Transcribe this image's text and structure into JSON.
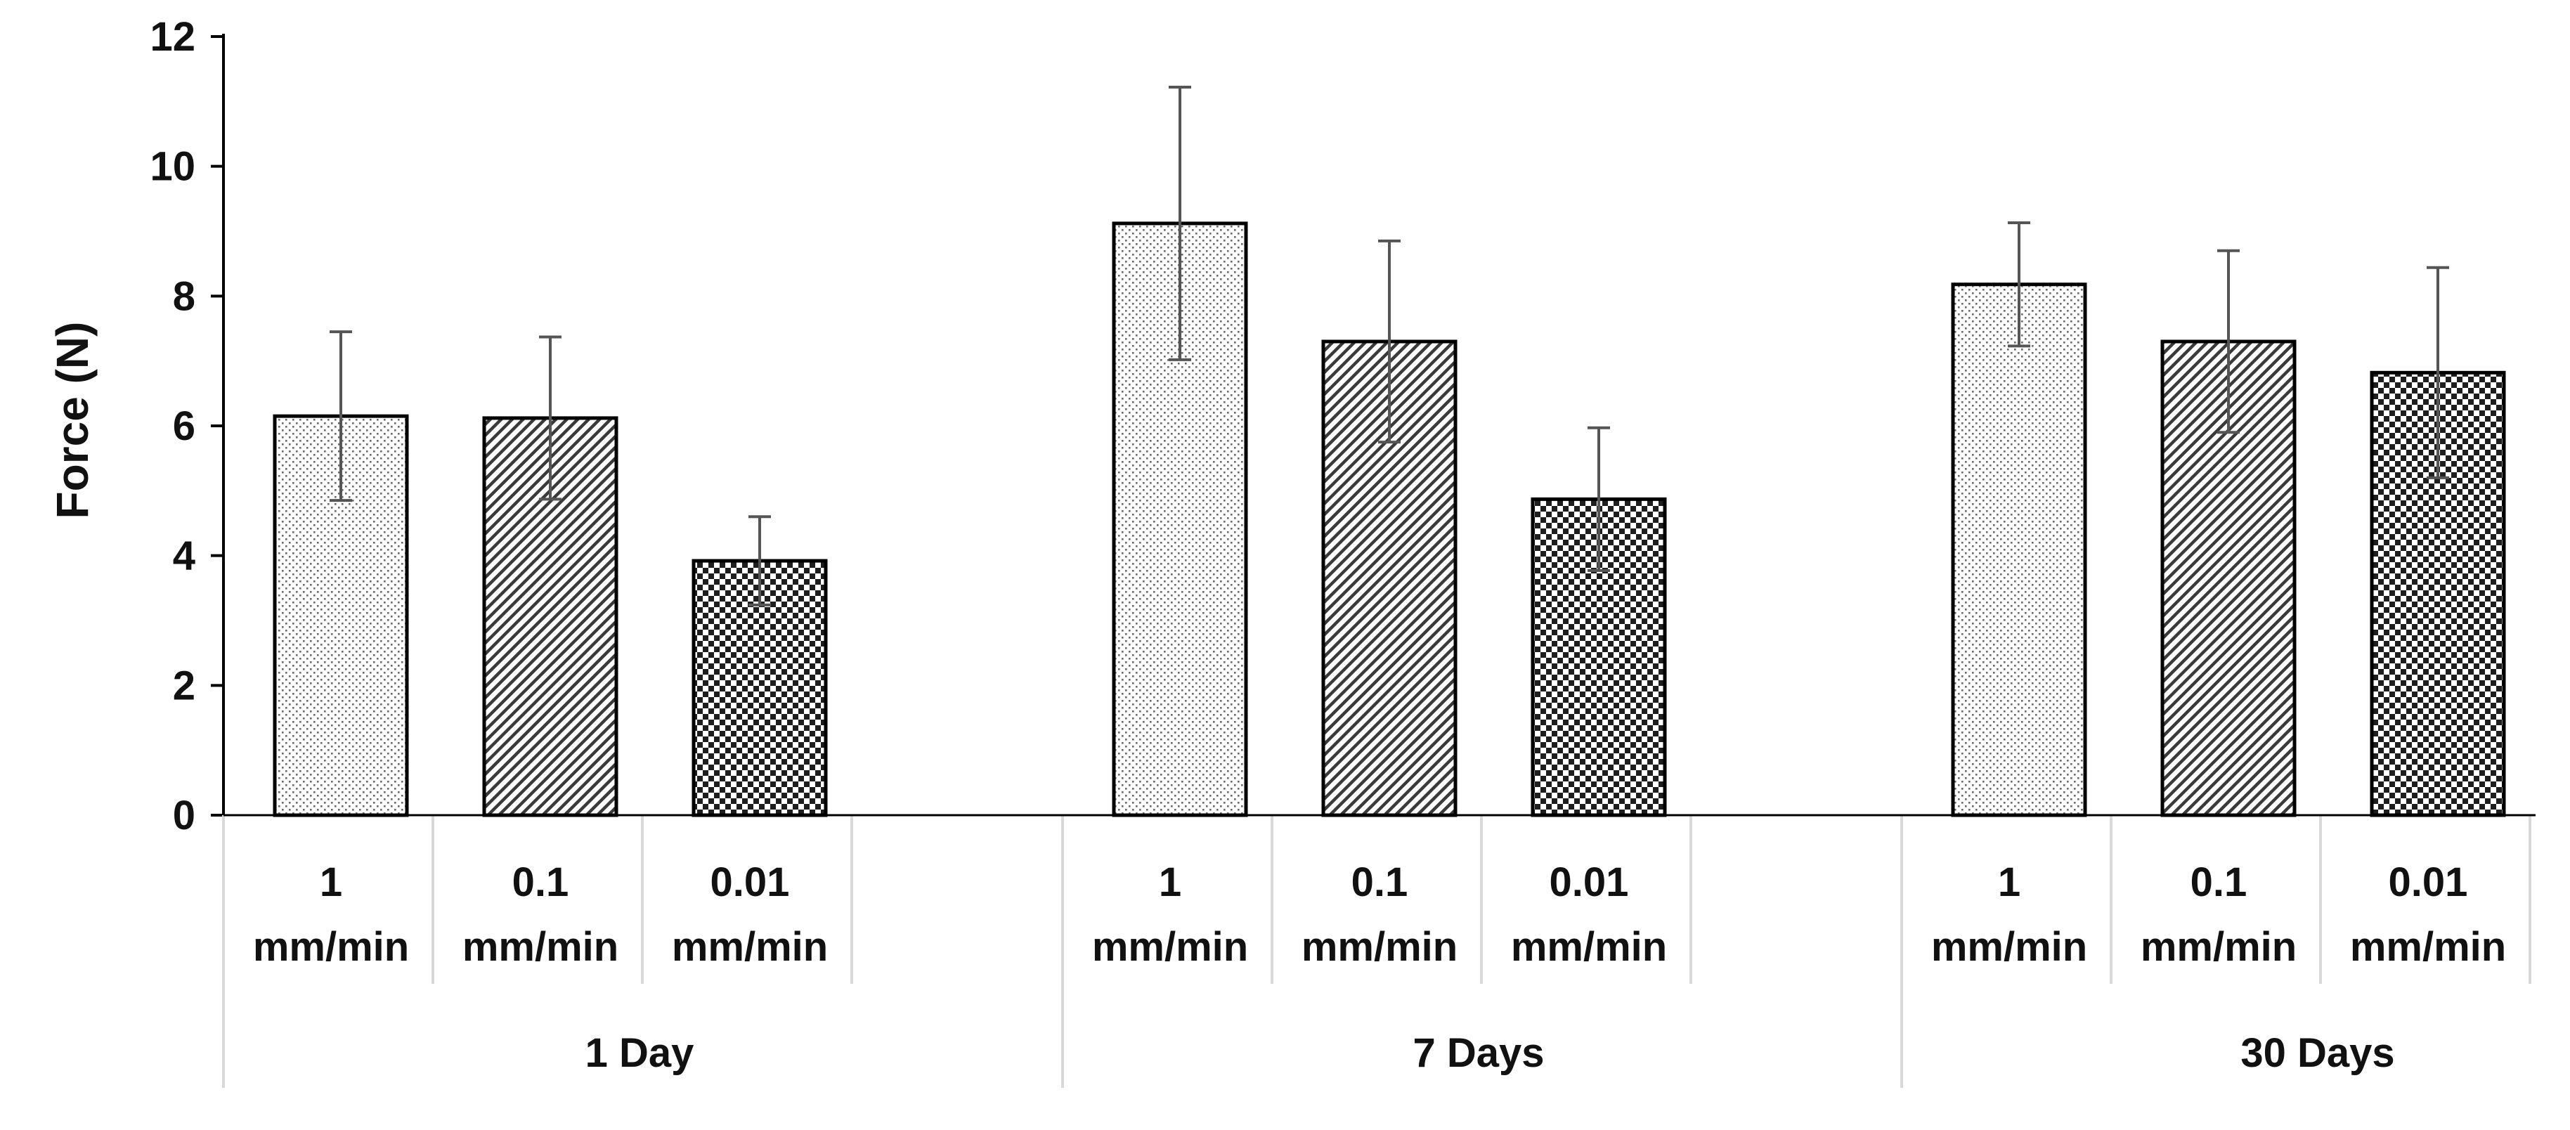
{
  "chart_data": {
    "type": "bar",
    "title": "",
    "xlabel": "",
    "ylabel": "Force (N)",
    "ylim": [
      0,
      12
    ],
    "yticks": [
      0,
      2,
      4,
      6,
      8,
      10,
      12
    ],
    "ytick_labels": [
      "0",
      "2",
      "4",
      "6",
      "8",
      "10",
      "12"
    ],
    "grid": false,
    "legend": "none",
    "groups": [
      {
        "label": "1 Day",
        "bars": [
          {
            "category": [
              "1",
              "mm/min"
            ],
            "value": 6.15,
            "error": 1.3,
            "pattern": "dots"
          },
          {
            "category": [
              "0.1",
              "mm/min"
            ],
            "value": 6.12,
            "error": 1.25,
            "pattern": "diagonal"
          },
          {
            "category": [
              "0.01",
              "mm/min"
            ],
            "value": 3.92,
            "error": 0.68,
            "pattern": "checker"
          }
        ]
      },
      {
        "label": "7 Days",
        "bars": [
          {
            "category": [
              "1",
              "mm/min"
            ],
            "value": 9.12,
            "error": 2.1,
            "pattern": "dots"
          },
          {
            "category": [
              "0.1",
              "mm/min"
            ],
            "value": 7.3,
            "error": 1.55,
            "pattern": "diagonal"
          },
          {
            "category": [
              "0.01",
              "mm/min"
            ],
            "value": 4.87,
            "error": 1.1,
            "pattern": "checker"
          }
        ]
      },
      {
        "label": "30 Days",
        "bars": [
          {
            "category": [
              "1",
              "mm/min"
            ],
            "value": 8.18,
            "error": 0.95,
            "pattern": "dots"
          },
          {
            "category": [
              "0.1",
              "mm/min"
            ],
            "value": 7.3,
            "error": 1.4,
            "pattern": "diagonal"
          },
          {
            "category": [
              "0.01",
              "mm/min"
            ],
            "value": 6.82,
            "error": 1.62,
            "pattern": "checker"
          }
        ]
      }
    ],
    "colors": {
      "bar_edge": "#000000",
      "pattern_ink": "#2b2b2b",
      "error_bar": "#555555",
      "axis": "#000000",
      "divider": "#d9d9d9"
    }
  }
}
